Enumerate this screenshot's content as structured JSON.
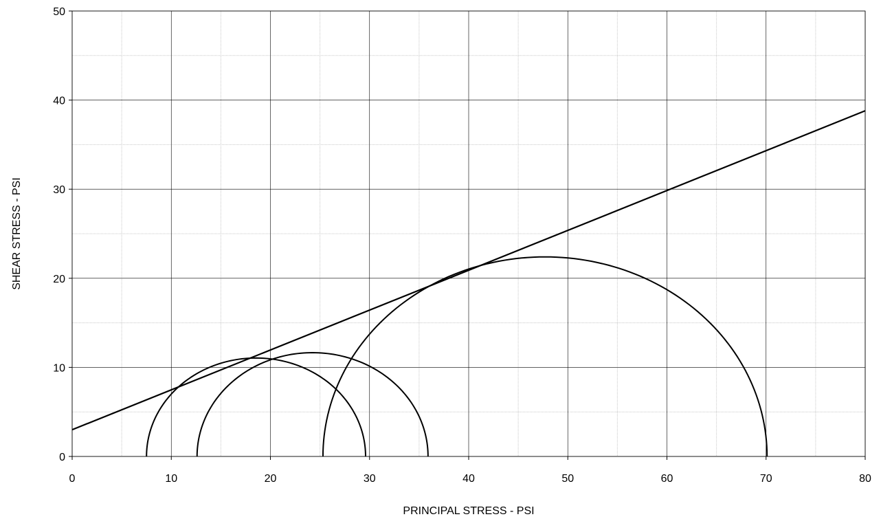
{
  "chart_data": {
    "type": "scatter",
    "title": "",
    "xlabel": "PRINCIPAL STRESS - PSI",
    "ylabel": "SHEAR STRESS - PSI",
    "xlim": [
      0,
      80
    ],
    "ylim": [
      0,
      50
    ],
    "x_ticks": [
      0,
      10,
      20,
      30,
      40,
      50,
      60,
      70,
      80
    ],
    "y_ticks": [
      0,
      10,
      20,
      30,
      40,
      50
    ],
    "minor_gridlines": true,
    "grid": true,
    "legend": "none",
    "mohr_circles": [
      {
        "sigma3": 7.5,
        "sigma1": 29.6
      },
      {
        "sigma3": 12.6,
        "sigma1": 35.9
      },
      {
        "sigma3": 25.3,
        "sigma1": 70.1
      }
    ],
    "failure_envelope": {
      "points": [
        [
          0,
          3.0
        ],
        [
          80,
          38.8
        ]
      ]
    },
    "colors": {
      "line": "#000000",
      "major_grid": "#000000",
      "minor_grid": "#c8c8c8"
    }
  }
}
